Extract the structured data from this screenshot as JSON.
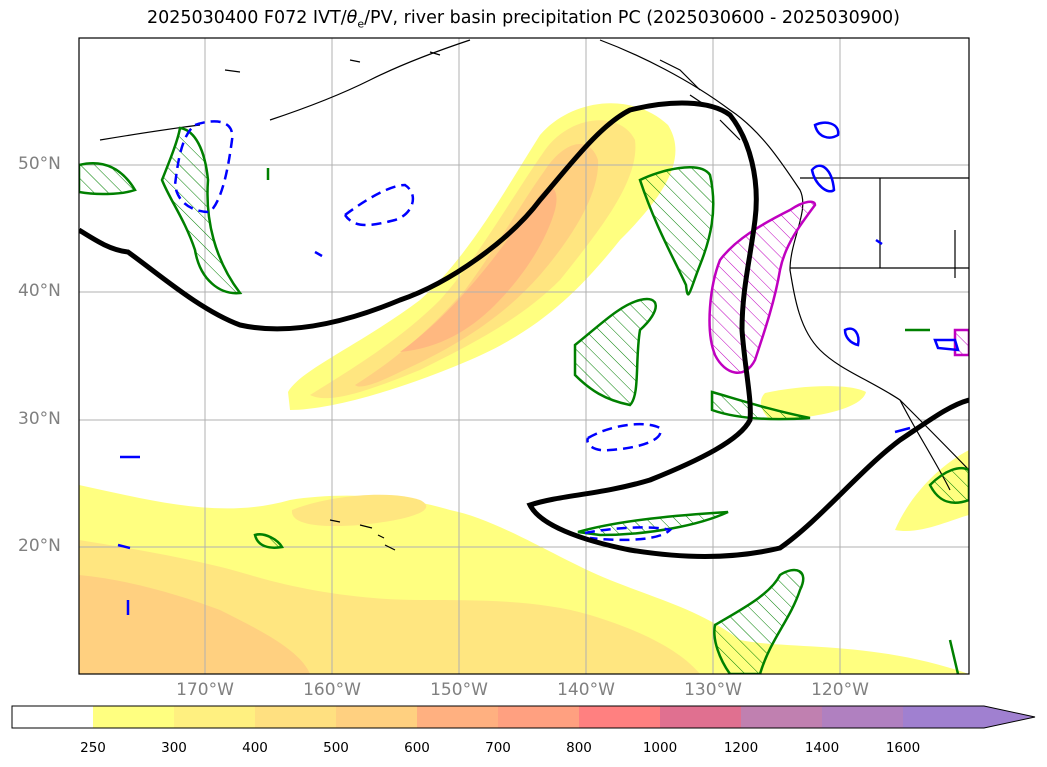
{
  "title": {
    "prefix": "2025030400 F072 IVT/",
    "theta": "θ",
    "theta_sub": "e",
    "suffix": "/PV, river basin precipitation PC (2025030600 - 2025030900)"
  },
  "lat_labels": [
    "50°N",
    "40°N",
    "30°N",
    "20°N"
  ],
  "lon_labels": [
    "170°W",
    "160°W",
    "150°W",
    "140°W",
    "130°W",
    "120°W"
  ],
  "colorbar": {
    "ticks": [
      "250",
      "300",
      "400",
      "500",
      "600",
      "700",
      "800",
      "1000",
      "1200",
      "1400",
      "1600"
    ],
    "colors": [
      "#ffffff",
      "#ffff80",
      "#fff080",
      "#ffe080",
      "#ffd080",
      "#ffb080",
      "#ffa080",
      "#ff8080",
      "#e07090",
      "#c080b0",
      "#b080c0",
      "#a080d0"
    ]
  },
  "colors": {
    "pv_contour": "#000000",
    "green_contour": "#008000",
    "blue_contour": "#0000ff",
    "magenta_contour": "#c000c0",
    "grid": "#b0b0b0"
  }
}
